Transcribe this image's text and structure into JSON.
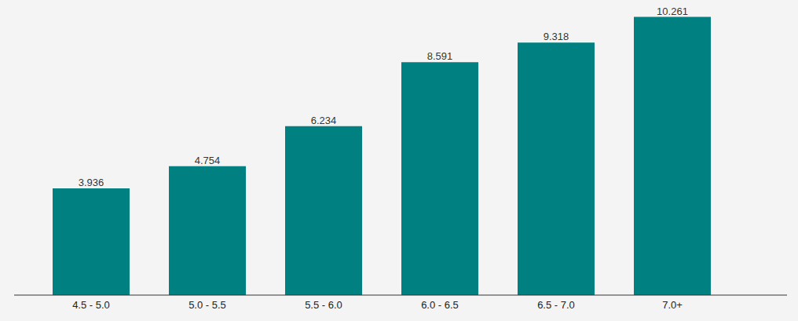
{
  "chart_data": {
    "type": "bar",
    "categories": [
      "4.5 - 5.0",
      "5.0 - 5.5",
      "5.5 - 6.0",
      "6.0 - 6.5",
      "6.5 - 7.0",
      "7.0+"
    ],
    "values": [
      3.936,
      4.754,
      6.234,
      8.591,
      9.318,
      10.261
    ],
    "color": "#008080",
    "ylim": [
      0,
      10.8
    ],
    "yticks": [],
    "grid": false,
    "data_labels": true,
    "tick_labels": "x"
  }
}
